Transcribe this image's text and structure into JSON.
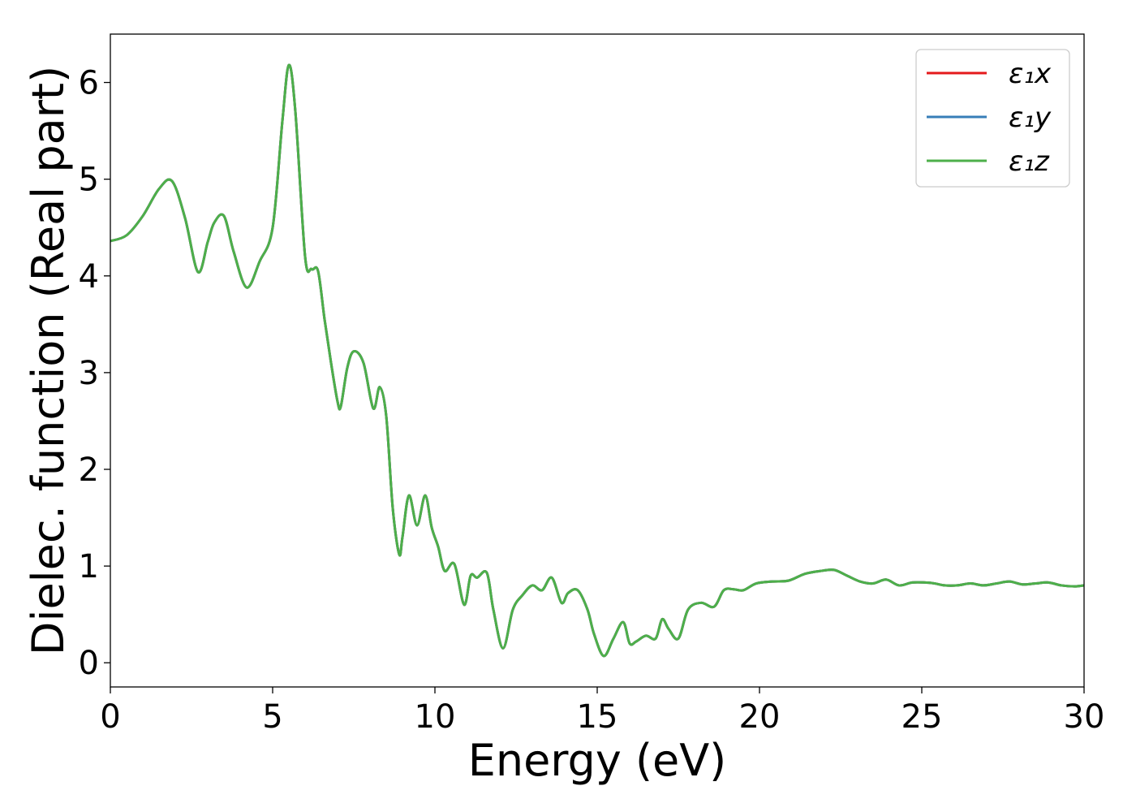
{
  "chart_data": {
    "type": "line",
    "title": "",
    "xlabel": "Energy (eV)",
    "ylabel": "Dielec. function (Real part)",
    "xlim": [
      0,
      30
    ],
    "ylim": [
      -0.25,
      6.5
    ],
    "xticks": [
      0,
      5,
      10,
      15,
      20,
      25,
      30
    ],
    "yticks": [
      0,
      1,
      2,
      3,
      4,
      5,
      6
    ],
    "xtick_labels": [
      "0",
      "5",
      "10",
      "15",
      "20",
      "25",
      "30"
    ],
    "ytick_labels": [
      "0",
      "1",
      "2",
      "3",
      "4",
      "5",
      "6"
    ],
    "grid": false,
    "legend_position": "top-right",
    "x": [
      0,
      0.5,
      1.0,
      1.5,
      1.9,
      2.3,
      2.7,
      3.0,
      3.2,
      3.5,
      3.8,
      4.2,
      4.6,
      5.0,
      5.3,
      5.5,
      5.7,
      6.0,
      6.2,
      6.4,
      6.6,
      6.8,
      7.0,
      7.1,
      7.3,
      7.5,
      7.8,
      8.1,
      8.3,
      8.5,
      8.7,
      8.9,
      9.0,
      9.2,
      9.45,
      9.7,
      9.9,
      10.1,
      10.3,
      10.6,
      10.9,
      11.1,
      11.3,
      11.6,
      11.8,
      12.1,
      12.4,
      12.7,
      13.0,
      13.3,
      13.6,
      13.9,
      14.1,
      14.4,
      14.7,
      14.9,
      15.2,
      15.5,
      15.8,
      16.0,
      16.2,
      16.5,
      16.8,
      17.0,
      17.2,
      17.5,
      17.8,
      18.2,
      18.6,
      18.9,
      19.2,
      19.5,
      19.9,
      20.4,
      20.9,
      21.4,
      21.9,
      22.3,
      22.7,
      23.1,
      23.5,
      23.9,
      24.3,
      24.7,
      25.1,
      25.4,
      25.7,
      26.1,
      26.5,
      26.9,
      27.3,
      27.7,
      28.1,
      28.5,
      28.9,
      29.3,
      29.7,
      30
    ],
    "series": [
      {
        "name": "ε₁x",
        "color": "#e41a1c",
        "y": [
          4.36,
          4.42,
          4.62,
          4.9,
          4.98,
          4.6,
          4.04,
          4.35,
          4.55,
          4.62,
          4.25,
          3.88,
          4.15,
          4.5,
          5.6,
          6.18,
          5.7,
          4.2,
          4.07,
          4.05,
          3.55,
          3.1,
          2.7,
          2.65,
          3.05,
          3.22,
          3.1,
          2.63,
          2.85,
          2.55,
          1.6,
          1.12,
          1.3,
          1.73,
          1.42,
          1.73,
          1.4,
          1.2,
          0.95,
          1.02,
          0.6,
          0.9,
          0.88,
          0.93,
          0.55,
          0.15,
          0.55,
          0.7,
          0.8,
          0.75,
          0.88,
          0.62,
          0.72,
          0.75,
          0.55,
          0.3,
          0.07,
          0.25,
          0.42,
          0.2,
          0.22,
          0.28,
          0.25,
          0.45,
          0.35,
          0.25,
          0.55,
          0.62,
          0.58,
          0.75,
          0.76,
          0.75,
          0.82,
          0.84,
          0.85,
          0.92,
          0.95,
          0.96,
          0.9,
          0.84,
          0.82,
          0.86,
          0.8,
          0.83,
          0.83,
          0.82,
          0.8,
          0.8,
          0.82,
          0.8,
          0.82,
          0.84,
          0.81,
          0.82,
          0.83,
          0.8,
          0.79,
          0.8
        ]
      },
      {
        "name": "ε₁y",
        "color": "#377eb8",
        "y": [
          4.36,
          4.42,
          4.62,
          4.9,
          4.98,
          4.6,
          4.04,
          4.35,
          4.55,
          4.62,
          4.25,
          3.88,
          4.15,
          4.5,
          5.6,
          6.18,
          5.7,
          4.2,
          4.07,
          4.05,
          3.55,
          3.1,
          2.7,
          2.65,
          3.05,
          3.22,
          3.1,
          2.63,
          2.85,
          2.55,
          1.6,
          1.12,
          1.3,
          1.73,
          1.42,
          1.73,
          1.4,
          1.2,
          0.95,
          1.02,
          0.6,
          0.9,
          0.88,
          0.93,
          0.55,
          0.15,
          0.55,
          0.7,
          0.8,
          0.75,
          0.88,
          0.62,
          0.72,
          0.75,
          0.55,
          0.3,
          0.07,
          0.25,
          0.42,
          0.2,
          0.22,
          0.28,
          0.25,
          0.45,
          0.35,
          0.25,
          0.55,
          0.62,
          0.58,
          0.75,
          0.76,
          0.75,
          0.82,
          0.84,
          0.85,
          0.92,
          0.95,
          0.96,
          0.9,
          0.84,
          0.82,
          0.86,
          0.8,
          0.83,
          0.83,
          0.82,
          0.8,
          0.8,
          0.82,
          0.8,
          0.82,
          0.84,
          0.81,
          0.82,
          0.83,
          0.8,
          0.79,
          0.8
        ]
      },
      {
        "name": "ε₁z",
        "color": "#4daf4a",
        "y": [
          4.36,
          4.42,
          4.62,
          4.9,
          4.98,
          4.6,
          4.04,
          4.35,
          4.55,
          4.62,
          4.25,
          3.88,
          4.15,
          4.5,
          5.6,
          6.18,
          5.7,
          4.2,
          4.07,
          4.05,
          3.55,
          3.1,
          2.7,
          2.65,
          3.05,
          3.22,
          3.1,
          2.63,
          2.85,
          2.55,
          1.6,
          1.12,
          1.3,
          1.73,
          1.42,
          1.73,
          1.4,
          1.2,
          0.95,
          1.02,
          0.6,
          0.9,
          0.88,
          0.93,
          0.55,
          0.15,
          0.55,
          0.7,
          0.8,
          0.75,
          0.88,
          0.62,
          0.72,
          0.75,
          0.55,
          0.3,
          0.07,
          0.25,
          0.42,
          0.2,
          0.22,
          0.28,
          0.25,
          0.45,
          0.35,
          0.25,
          0.55,
          0.62,
          0.58,
          0.75,
          0.76,
          0.75,
          0.82,
          0.84,
          0.85,
          0.92,
          0.95,
          0.96,
          0.9,
          0.84,
          0.82,
          0.86,
          0.8,
          0.83,
          0.83,
          0.82,
          0.8,
          0.8,
          0.82,
          0.8,
          0.82,
          0.84,
          0.81,
          0.82,
          0.83,
          0.8,
          0.79,
          0.8
        ]
      }
    ]
  }
}
